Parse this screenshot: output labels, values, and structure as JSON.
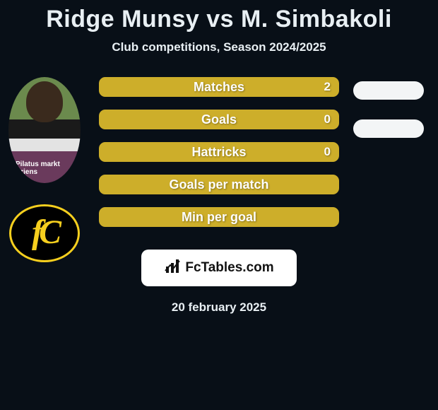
{
  "title": "Ridge Munsy vs M. Simbakoli",
  "subtitle": "Club competitions, Season 2024/2025",
  "stats": [
    {
      "label": "Matches",
      "value_left": "2"
    },
    {
      "label": "Goals",
      "value_left": "0"
    },
    {
      "label": "Hattricks",
      "value_left": "0"
    },
    {
      "label": "Goals per match",
      "value_left": ""
    },
    {
      "label": "Min per goal",
      "value_left": ""
    }
  ],
  "style": {
    "bar_bg": "#cdae2a",
    "bar_border": "#cdae2a",
    "text_color": "#fdfdfd",
    "page_bg": "#080f17"
  },
  "player_avatar_text": "Pilatus\nmarkt\nKriens",
  "club_badge_text": "fC",
  "footer_logo_text": "FcTables.com",
  "footer_date": "20 february 2025"
}
